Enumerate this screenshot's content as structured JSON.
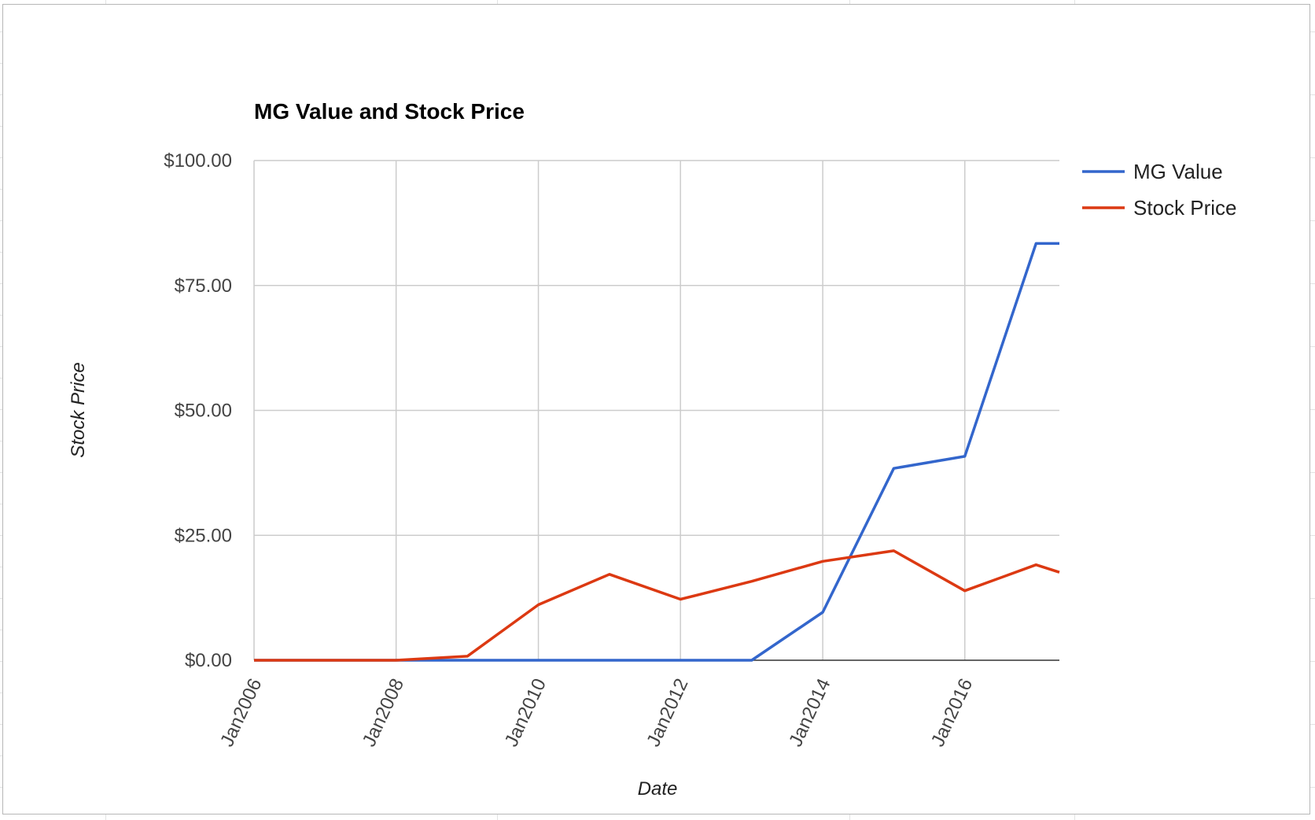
{
  "chart_data": {
    "type": "line",
    "title": "MG Value and Stock Price",
    "xlabel": "Date",
    "ylabel": "Stock Price",
    "x_ticks": [
      "Jan2006",
      "Jan2008",
      "Jan2010",
      "Jan2012",
      "Jan2014",
      "Jan2016"
    ],
    "x_range": [
      "2006-01-01",
      "2017-05-01"
    ],
    "y_ticks": [
      "$0.00",
      "$25.00",
      "$50.00",
      "$75.00",
      "$100.00"
    ],
    "ylim": [
      0,
      100
    ],
    "grid": true,
    "legend_position": "right",
    "series": [
      {
        "name": "MG Value",
        "color": "#3366cc",
        "points": [
          {
            "date": "2006-01-01",
            "value": 0
          },
          {
            "date": "2007-01-01",
            "value": 0
          },
          {
            "date": "2008-01-01",
            "value": 0
          },
          {
            "date": "2009-01-01",
            "value": 0
          },
          {
            "date": "2010-01-01",
            "value": 0
          },
          {
            "date": "2011-01-01",
            "value": 0
          },
          {
            "date": "2012-01-01",
            "value": 0
          },
          {
            "date": "2013-01-01",
            "value": 0
          },
          {
            "date": "2014-01-01",
            "value": 9.6
          },
          {
            "date": "2015-01-01",
            "value": 38.4
          },
          {
            "date": "2016-01-01",
            "value": 40.8
          },
          {
            "date": "2017-01-01",
            "value": 83.4
          },
          {
            "date": "2017-05-01",
            "value": 83.4
          }
        ]
      },
      {
        "name": "Stock Price",
        "color": "#dc3912",
        "points": [
          {
            "date": "2006-01-01",
            "value": 0
          },
          {
            "date": "2007-01-01",
            "value": 0
          },
          {
            "date": "2008-01-01",
            "value": 0
          },
          {
            "date": "2009-01-01",
            "value": 0.8
          },
          {
            "date": "2010-01-01",
            "value": 11.1
          },
          {
            "date": "2011-01-01",
            "value": 17.2
          },
          {
            "date": "2012-01-01",
            "value": 12.2
          },
          {
            "date": "2013-01-01",
            "value": 15.8
          },
          {
            "date": "2014-01-01",
            "value": 19.8
          },
          {
            "date": "2015-01-01",
            "value": 21.9
          },
          {
            "date": "2016-01-01",
            "value": 13.9
          },
          {
            "date": "2017-01-01",
            "value": 19.1
          },
          {
            "date": "2017-05-01",
            "value": 17.6
          }
        ]
      }
    ]
  }
}
